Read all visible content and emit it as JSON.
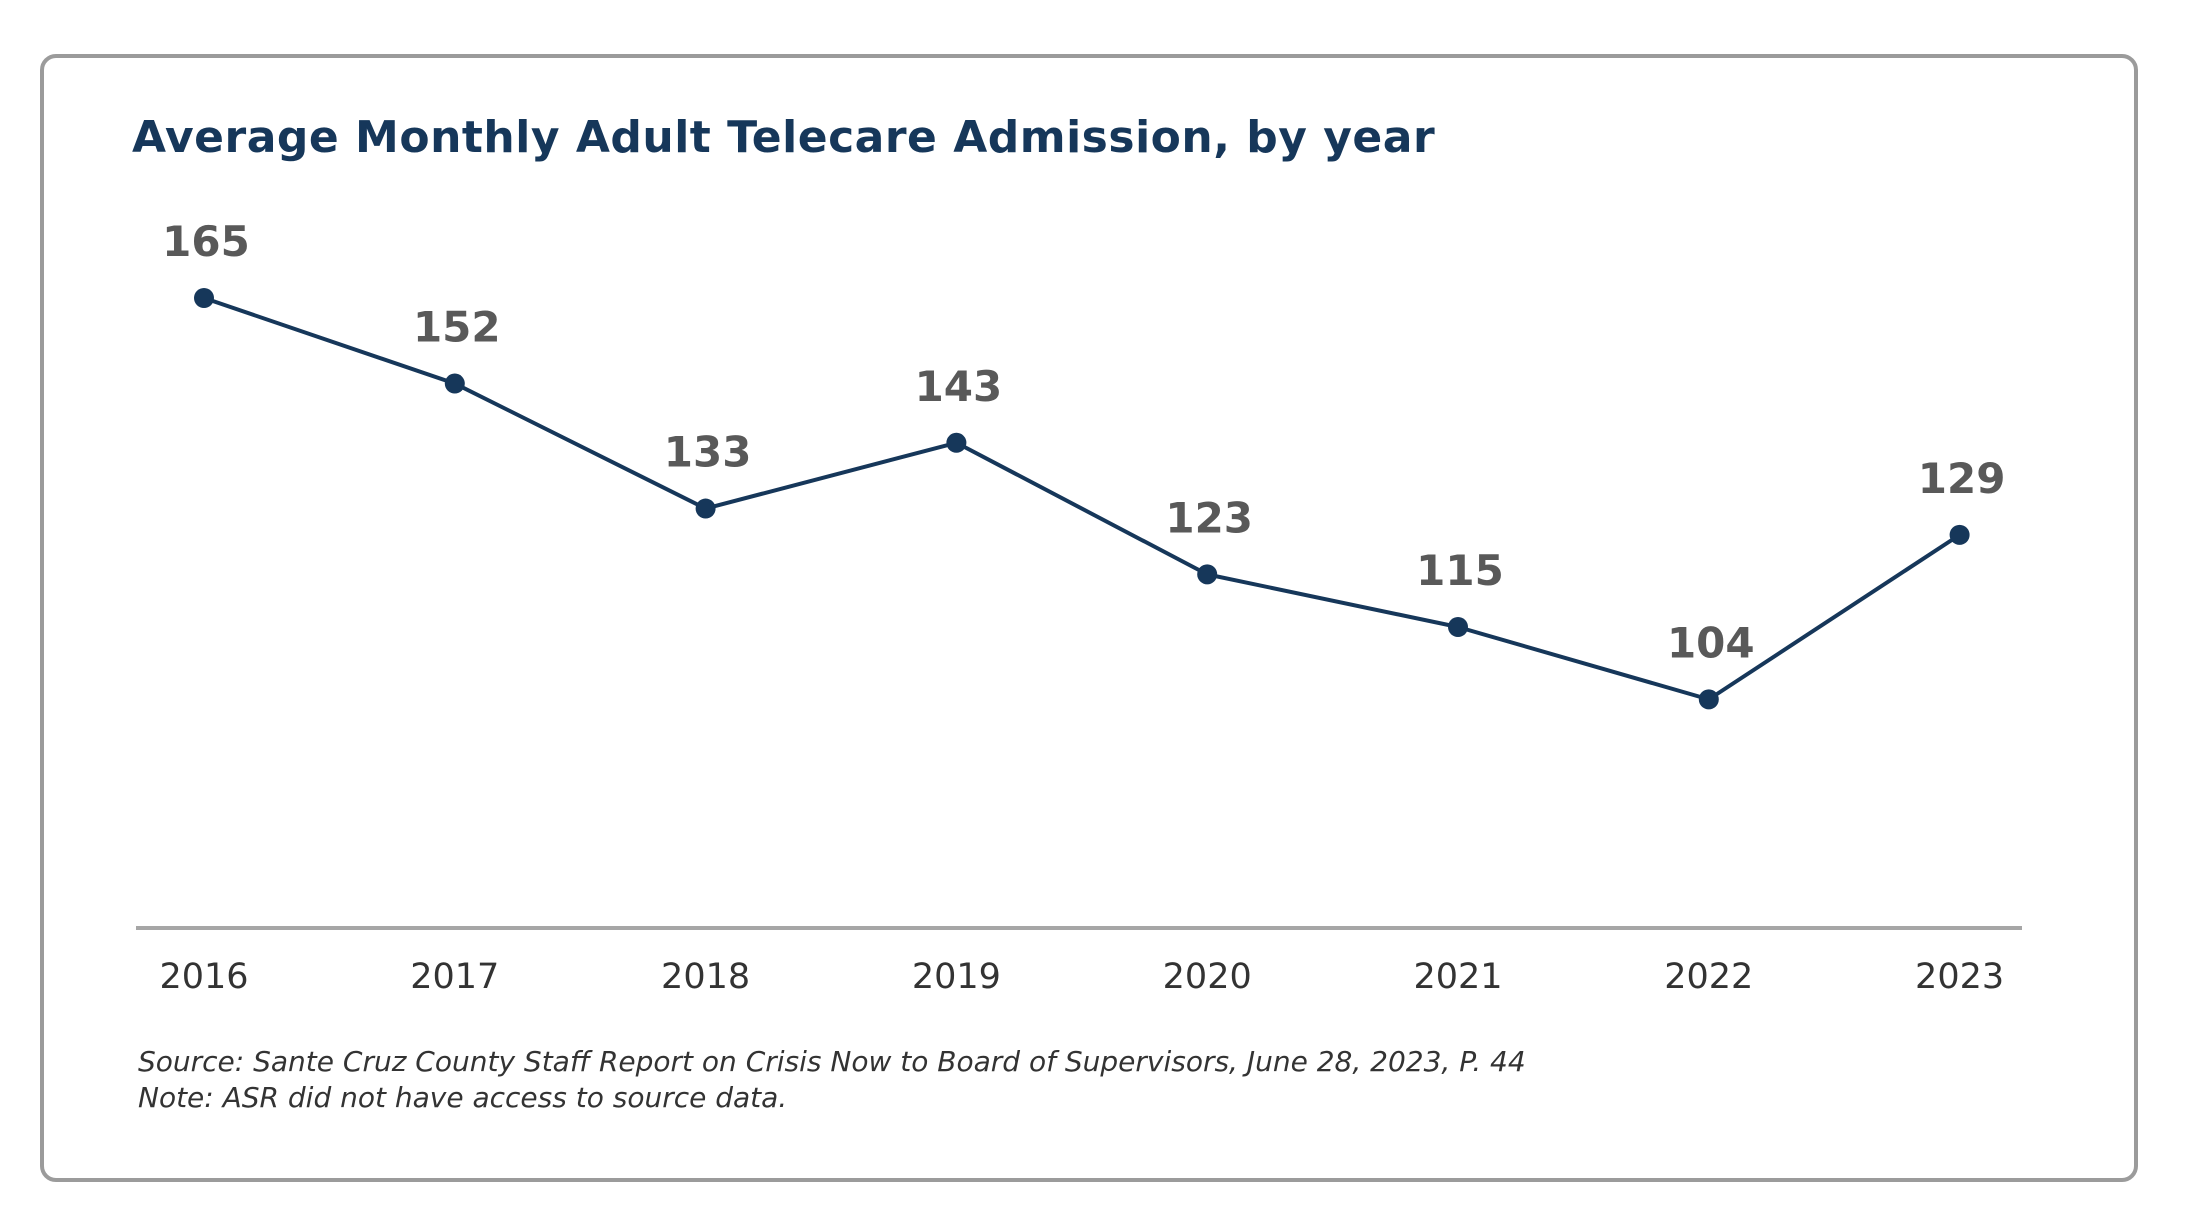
{
  "chart_data": {
    "type": "line",
    "title": "Average Monthly Adult Telecare Admission, by year",
    "xlabel": "",
    "ylabel": "",
    "categories": [
      "2016",
      "2017",
      "2018",
      "2019",
      "2020",
      "2021",
      "2022",
      "2023"
    ],
    "series": [
      {
        "name": "Average Monthly Adult Telecare Admission",
        "values": [
          165,
          152,
          133,
          143,
          123,
          115,
          104,
          129
        ]
      }
    ],
    "data_labels": [
      "165",
      "152",
      "133",
      "143",
      "123",
      "115",
      "104",
      "129"
    ],
    "ylim": [
      0,
      165
    ],
    "grid": false,
    "legend": "none",
    "line_color": "#16375a",
    "label_color": "#595959",
    "axis_color": "#a6a6a6"
  },
  "footnotes": {
    "source": "Source: Sante Cruz County Staff Report on Crisis Now to Board of Supervisors, June 28, 2023, P. 44",
    "note": "Note: ASR did not have access to source data."
  }
}
